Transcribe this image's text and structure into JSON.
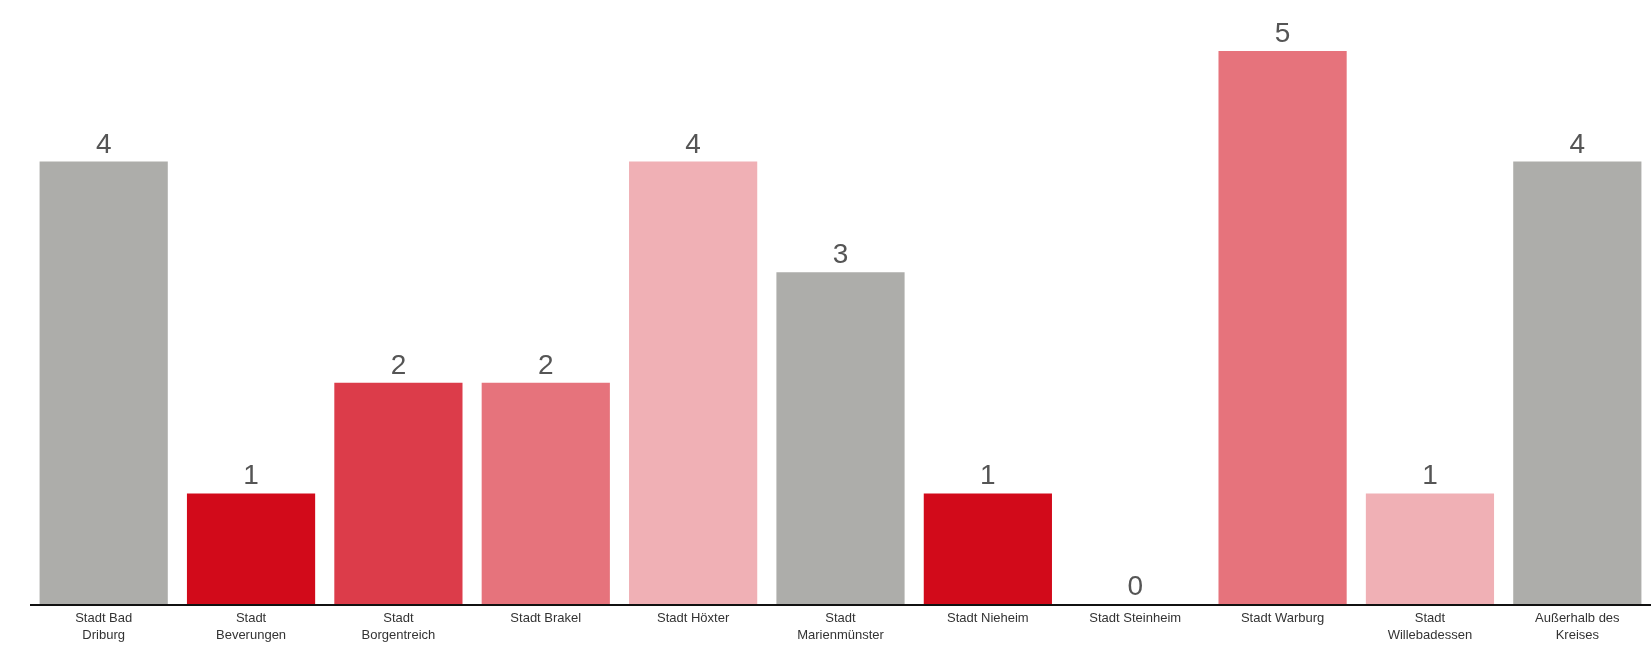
{
  "chart_data": {
    "type": "bar",
    "categories": [
      "Stadt Bad Driburg",
      "Stadt Beverungen",
      "Stadt Borgentreich",
      "Stadt Brakel",
      "Stadt Höxter",
      "Stadt Marienmünster",
      "Stadt Nieheim",
      "Stadt Steinheim",
      "Stadt Warburg",
      "Stadt Willebadessen",
      "Außerhalb des Kreises"
    ],
    "values": [
      4,
      1,
      2,
      2,
      4,
      3,
      1,
      0,
      5,
      1,
      4
    ],
    "colors": [
      "#adadaa",
      "#d20a1a",
      "#dc3c4a",
      "#e6737c",
      "#f0b0b5",
      "#adadaa",
      "#d20a1a",
      "#dc3c4a",
      "#e6737c",
      "#f0b0b5",
      "#adadaa"
    ],
    "data_labels": true
  }
}
